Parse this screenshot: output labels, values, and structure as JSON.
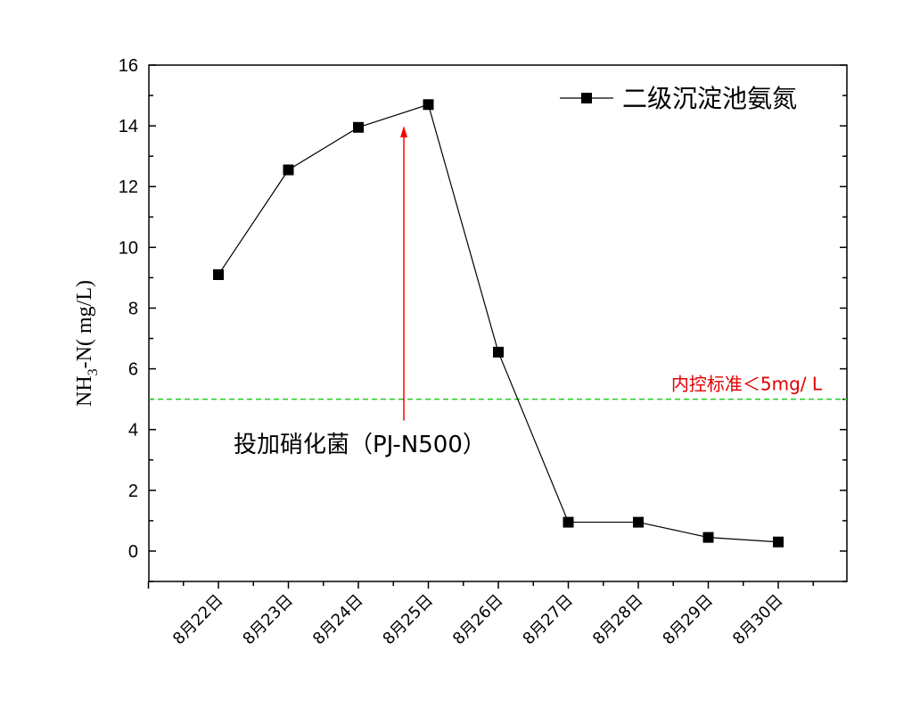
{
  "chart_data": {
    "type": "line",
    "title": "",
    "xlabel": "",
    "ylabel": "NH3-N( mg/L)",
    "ylabel_parts": {
      "main": "NH",
      "sub": "3",
      "rest": "-N(  mg/L)"
    },
    "categories": [
      "8月22日",
      "8月23日",
      "8月24日",
      "8月25日",
      "8月26日",
      "8月27日",
      "8月28日",
      "8月29日",
      "8月30日"
    ],
    "series": [
      {
        "name": "二级沉淀池氨氮",
        "values": [
          9.1,
          12.55,
          13.95,
          14.7,
          6.55,
          0.95,
          0.95,
          0.45,
          0.3
        ],
        "color": "#000000"
      }
    ],
    "ylim": [
      -1,
      16
    ],
    "yticks": [
      0,
      2,
      4,
      6,
      8,
      10,
      12,
      14,
      16
    ],
    "grid": false,
    "legend_position": "top-right",
    "reference_line": {
      "value": 5,
      "label": "内控标准＜5mg/ L",
      "color": "#22cc22"
    },
    "annotations": [
      {
        "text": "投加硝化菌（PJ-N500）",
        "category_position": 2.65,
        "arrow_from": 4.3,
        "arrow_to": 14.0,
        "color": "#ff0000"
      }
    ]
  }
}
